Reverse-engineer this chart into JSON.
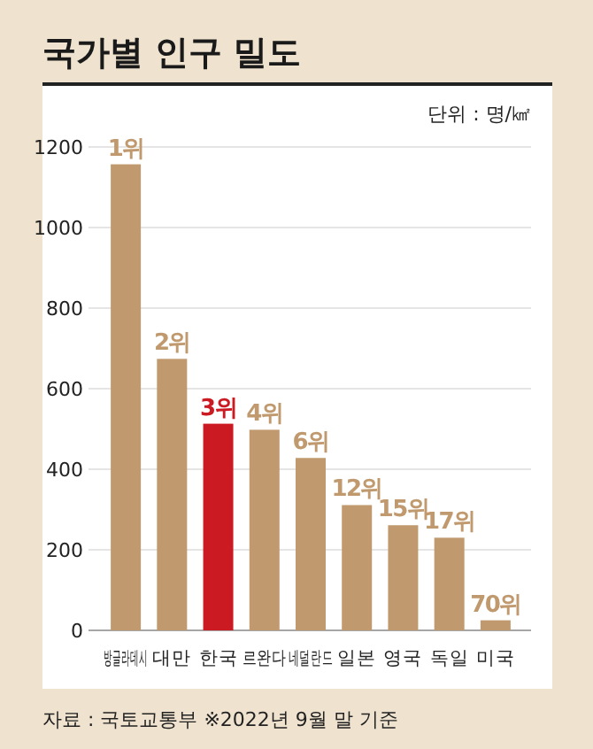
{
  "chart_data": {
    "type": "bar",
    "title": "국가별 인구 밀도",
    "categories": [
      "방글라데시",
      "대만",
      "한국",
      "르완다",
      "네덜란드",
      "일본",
      "영국",
      "독일",
      "미국"
    ],
    "values": [
      1157,
      674,
      513,
      498,
      428,
      311,
      261,
      230,
      25
    ],
    "colors": [
      "#c09a6e",
      "#c09a6e",
      "#cc1a22",
      "#c09a6e",
      "#c09a6e",
      "#c09a6e",
      "#c09a6e",
      "#c09a6e",
      "#c09a6e"
    ],
    "ylim": [
      0,
      1200
    ],
    "yticks": [
      0,
      200,
      400,
      600,
      800,
      1000,
      1200
    ],
    "grid": "y",
    "annotations": [
      "단위 : 명/㎢",
      "자료 : 국토교통부 ※2022년 9월 말 기준",
      {
        "text": "1위",
        "x": "방글라데시",
        "y": 1157
      },
      {
        "text": "2위",
        "x": "대만",
        "y": 674
      },
      {
        "text": "3위",
        "x": "한국",
        "y": 513
      },
      {
        "text": "4위",
        "x": "르완다",
        "y": 498
      },
      {
        "text": "6위",
        "x": "네덜란드",
        "y": 428
      },
      {
        "text": "12위",
        "x": "일본",
        "y": 311
      },
      {
        "text": "15위",
        "x": "영국",
        "y": 261
      },
      {
        "text": "17위",
        "x": "독일",
        "y": 230
      },
      {
        "text": "70위",
        "x": "미국",
        "y": 25
      }
    ]
  }
}
